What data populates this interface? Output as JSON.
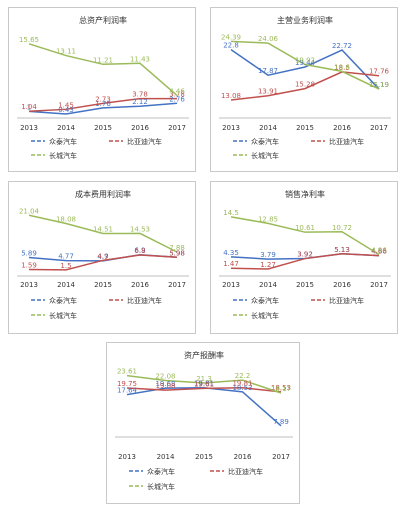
{
  "chart_data": [
    {
      "type": "line",
      "title": "总资产利润率",
      "categories": [
        "2013",
        "2014",
        "2015",
        "2016",
        "2017"
      ],
      "series": [
        {
          "name": "众泰汽车",
          "values": [
            1.0,
            0.43,
            1.76,
            2.12,
            2.76
          ]
        },
        {
          "name": "比亚迪汽车",
          "values": [
            1.04,
            1.45,
            2.73,
            3.78,
            3.78
          ]
        },
        {
          "name": "长城汽车",
          "values": [
            15.65,
            13.11,
            11.21,
            11.43,
            4.46
          ]
        }
      ],
      "ylim": [
        0,
        18
      ]
    },
    {
      "type": "line",
      "title": "主营业务利润率",
      "categories": [
        "2013",
        "2014",
        "2015",
        "2016",
        "2017"
      ],
      "series": [
        {
          "name": "众泰汽车",
          "values": [
            22.8,
            17.87,
            19.44,
            22.72,
            15.19
          ]
        },
        {
          "name": "比亚迪汽车",
          "values": [
            13.08,
            13.91,
            15.28,
            18.5,
            17.76
          ]
        },
        {
          "name": "长城汽车",
          "values": [
            24.39,
            24.06,
            19.92,
            18.6,
            15.19
          ]
        }
      ],
      "ylim": [
        10,
        26
      ]
    },
    {
      "type": "line",
      "title": "成本费用利润率",
      "categories": [
        "2013",
        "2014",
        "2015",
        "2016",
        "2017"
      ],
      "series": [
        {
          "name": "众泰汽车",
          "values": [
            5.89,
            4.77,
            4.7,
            6.9,
            5.98
          ]
        },
        {
          "name": "比亚迪汽车",
          "values": [
            1.59,
            1.5,
            4.9,
            6.8,
            5.98
          ]
        },
        {
          "name": "长城汽车",
          "values": [
            21.04,
            18.08,
            14.51,
            14.53,
            7.88
          ]
        }
      ],
      "ylim": [
        0,
        24
      ]
    },
    {
      "type": "line",
      "title": "销售净利率",
      "categories": [
        "2013",
        "2014",
        "2015",
        "2016",
        "2017"
      ],
      "series": [
        {
          "name": "众泰汽车",
          "values": [
            4.35,
            3.79,
            3.92,
            5.13,
            4.66
          ]
        },
        {
          "name": "比亚迪汽车",
          "values": [
            1.47,
            1.27,
            3.92,
            5.13,
            4.66
          ]
        },
        {
          "name": "长城汽车",
          "values": [
            14.5,
            12.85,
            10.61,
            10.72,
            4.96
          ]
        }
      ],
      "ylim": [
        0,
        17
      ]
    },
    {
      "type": "line",
      "title": "资产报酬率",
      "categories": [
        "2013",
        "2014",
        "2015",
        "2016",
        "2017"
      ],
      "series": [
        {
          "name": "众泰汽车",
          "values": [
            17.64,
            19.68,
            19.81,
            18.53,
            7.89
          ]
        },
        {
          "name": "比亚迪汽车",
          "values": [
            19.75,
            19.08,
            19.61,
            19.81,
            18.53
          ]
        },
        {
          "name": "长城汽车",
          "values": [
            23.61,
            22.08,
            21.3,
            22.2,
            18.17
          ]
        }
      ],
      "ylim": [
        5,
        26
      ]
    }
  ],
  "colors": {
    "series": [
      "#4472c4",
      "#c0504d",
      "#9bbb59"
    ],
    "labels": [
      "#4472c4",
      "#c0504d",
      "#9bbb59"
    ],
    "axis": "#bfbfbf"
  }
}
